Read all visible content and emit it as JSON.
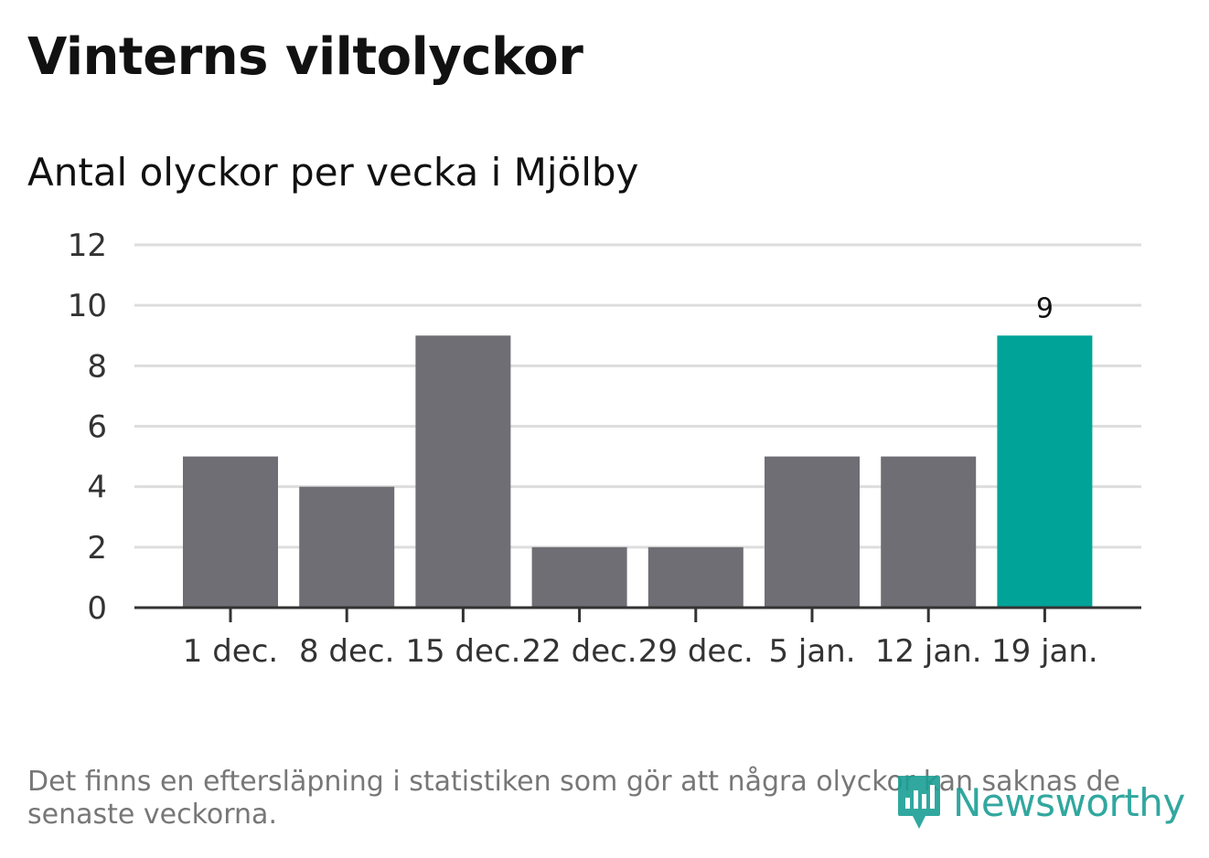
{
  "title": "Vinterns viltolyckor",
  "subtitle": "Antal olyckor per vecka i Mjölby",
  "note": "Det finns en eftersläpning i statistiken som gör att några olyckor kan saknas de senaste veckorna.",
  "logo_text": "Newsworthy",
  "colors": {
    "bar": "#6f6e74",
    "highlight": "#00a398",
    "grid": "#dddddd",
    "axis": "#333333",
    "logo": "#1b9e95"
  },
  "chart_data": {
    "type": "bar",
    "categories": [
      "1 dec.",
      "8 dec.",
      "15 dec.",
      "22 dec.",
      "29 dec.",
      "5 jan.",
      "12 jan.",
      "19 jan."
    ],
    "values": [
      5,
      4,
      9,
      2,
      2,
      5,
      5,
      9
    ],
    "highlight_index": 7,
    "data_labels": [
      null,
      null,
      null,
      null,
      null,
      null,
      null,
      "9"
    ],
    "y_ticks": [
      0,
      2,
      4,
      6,
      8,
      10,
      12
    ],
    "ylim": [
      0,
      12
    ],
    "grid": true,
    "legend": "none"
  }
}
